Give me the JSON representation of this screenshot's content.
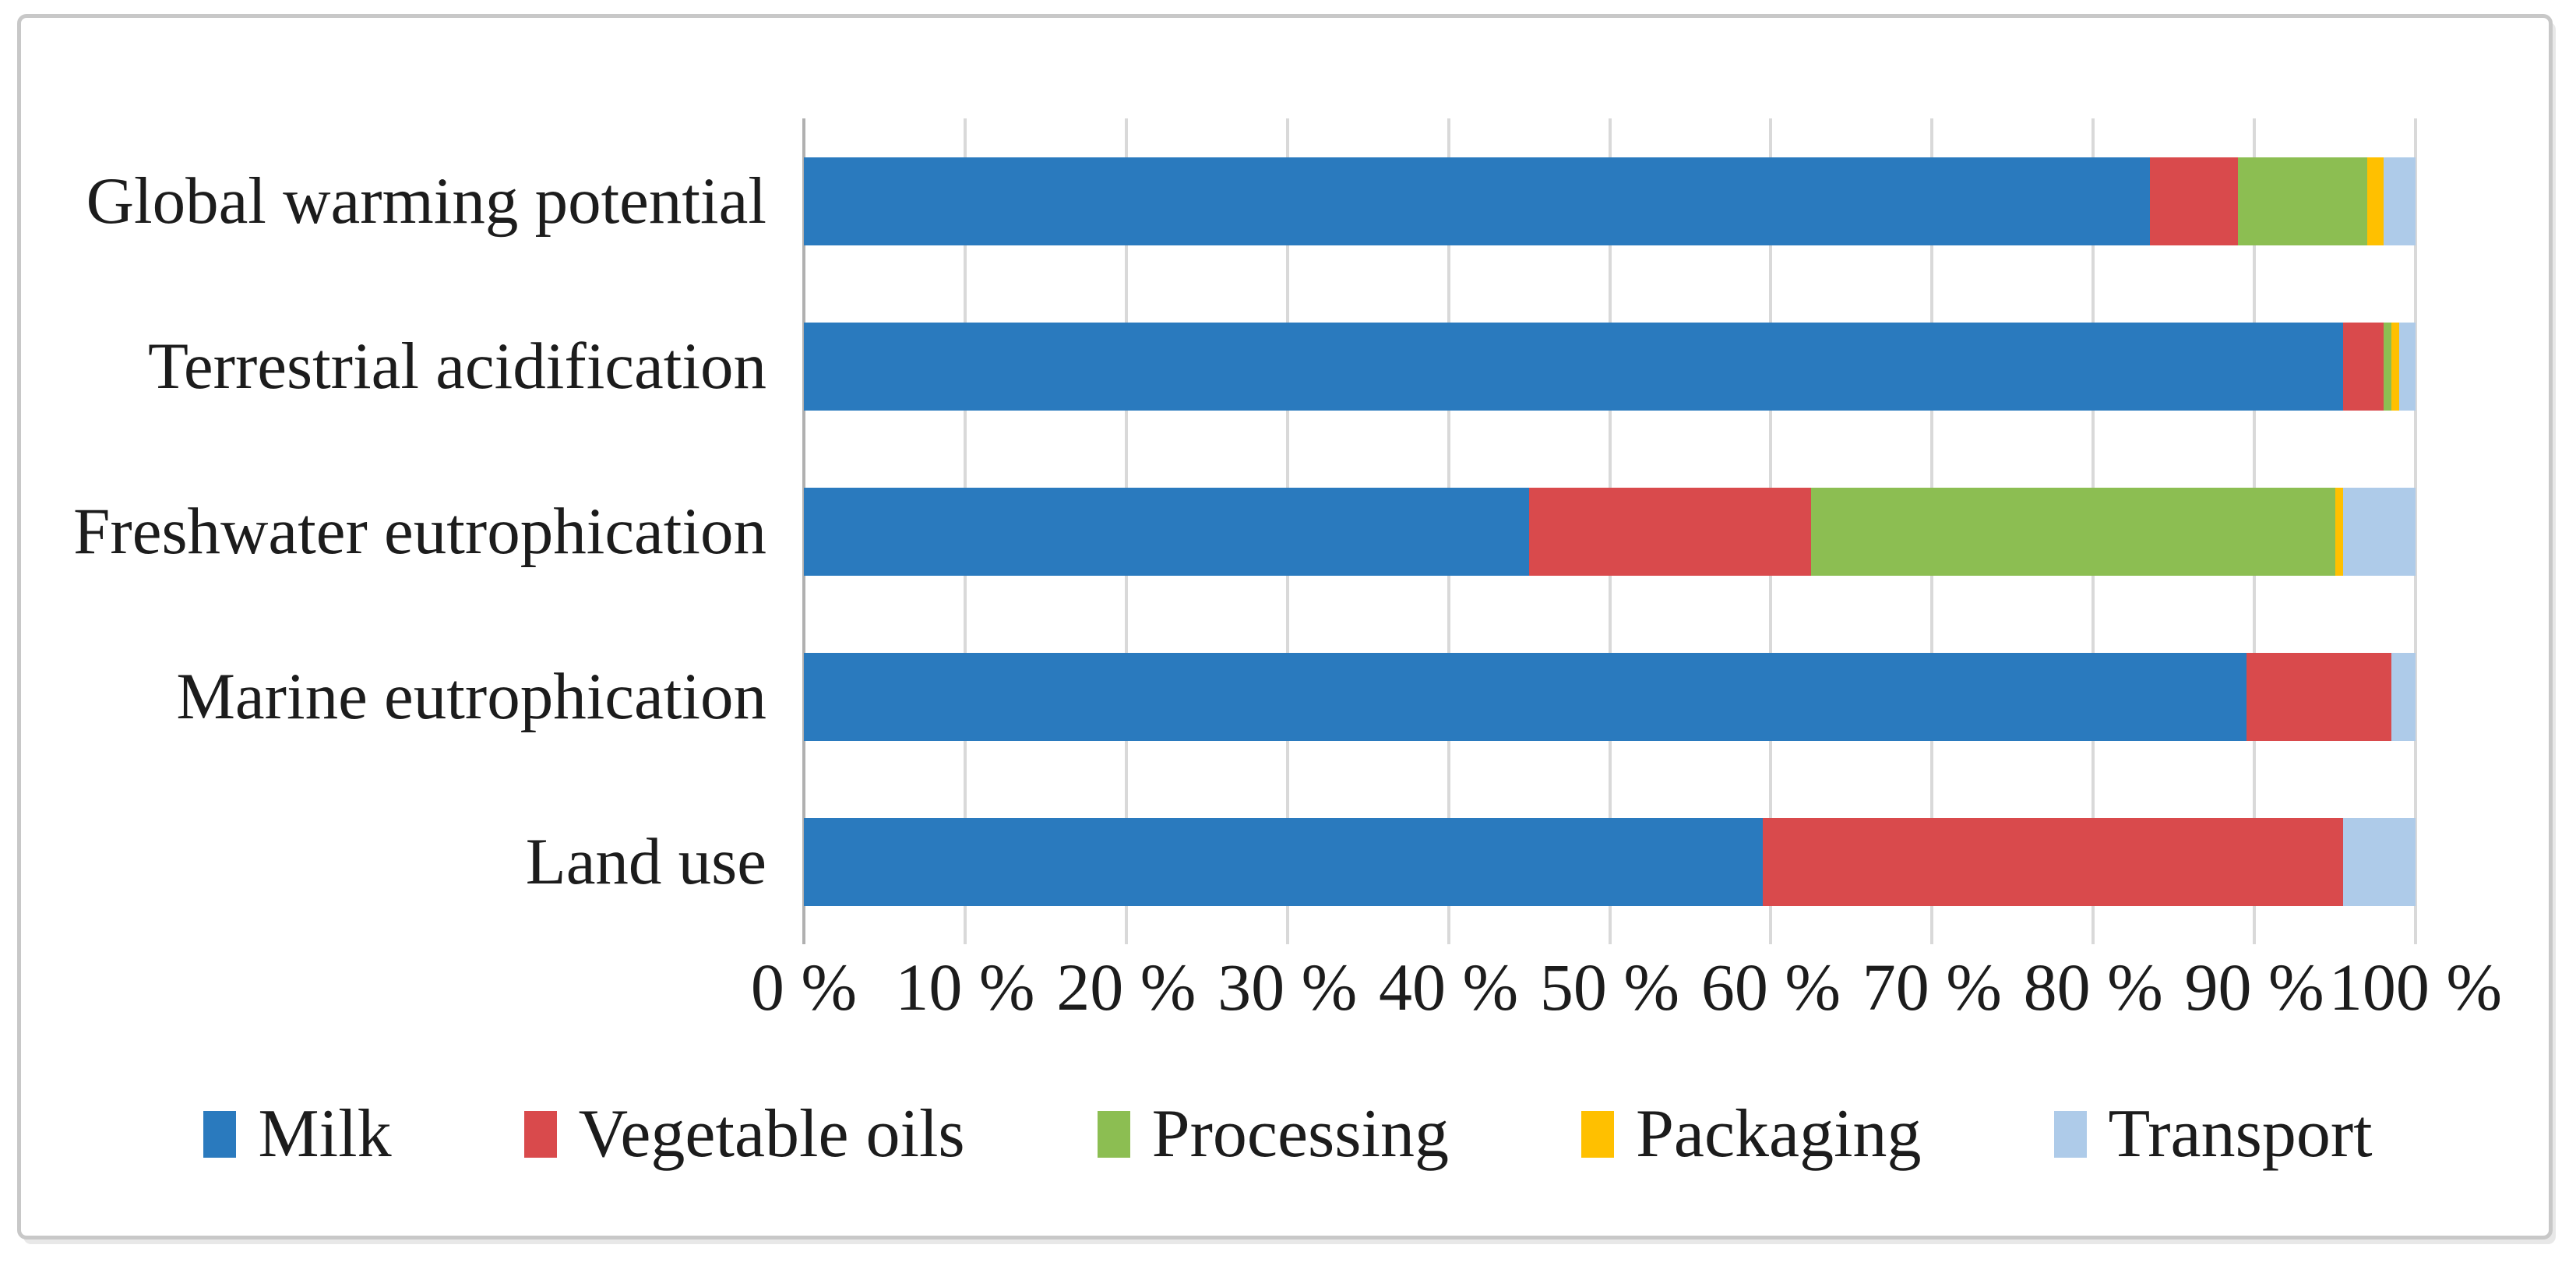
{
  "figure": {
    "background_color": "#ffffff",
    "border_color": "#c8c8c8"
  },
  "chart_data": {
    "type": "bar",
    "orientation": "horizontal",
    "stacked": true,
    "unit": "percent",
    "title": "",
    "xlabel": "",
    "ylabel": "",
    "categories": [
      "Global warming potential",
      "Terrestrial acidification",
      "Freshwater eutrophication",
      "Marine eutrophication",
      "Land use"
    ],
    "series": [
      {
        "name": "Milk",
        "color": "#2a7abe",
        "values": [
          83.5,
          95.5,
          45.0,
          89.5,
          59.5
        ]
      },
      {
        "name": "Vegetable oils",
        "color": "#d94a4c",
        "values": [
          5.5,
          2.5,
          17.5,
          9.0,
          36.0
        ]
      },
      {
        "name": "Processing",
        "color": "#8cbe52",
        "values": [
          8.0,
          0.5,
          32.5,
          0.0,
          0.0
        ]
      },
      {
        "name": "Packaging",
        "color": "#ffc000",
        "values": [
          1.0,
          0.5,
          0.5,
          0.0,
          0.0
        ]
      },
      {
        "name": "Transport",
        "color": "#aecbe9",
        "values": [
          2.0,
          1.0,
          4.5,
          1.5,
          4.5
        ]
      }
    ],
    "x_axis": {
      "min": 0,
      "max": 100,
      "tick_step": 10,
      "tick_labels": [
        "0 %",
        "10 %",
        "20 %",
        "30 %",
        "40 %",
        "50 %",
        "60 %",
        "70 %",
        "80 %",
        "90 %",
        "100 %"
      ]
    },
    "grid": true,
    "gridline_color": "#d9d9d9",
    "axis_line_color": "#b0b0b0",
    "legend_position": "bottom"
  }
}
